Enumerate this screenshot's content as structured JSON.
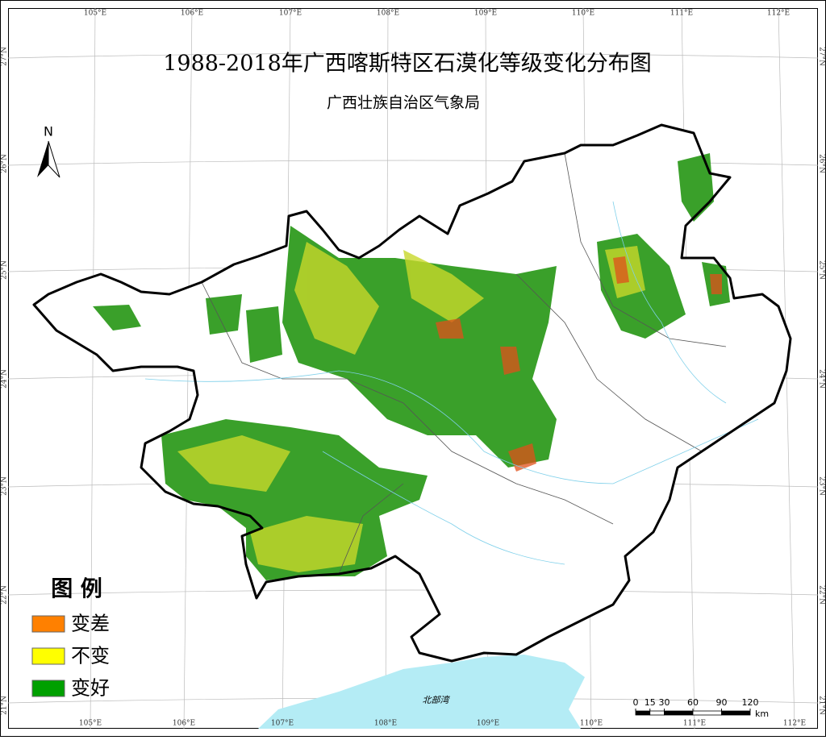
{
  "map": {
    "title": "1988-2018年广西喀斯特区石漠化等级变化分布图",
    "subtitle": "广西壮族自治区气象局",
    "north": "N",
    "longitude_labels": [
      "105°E",
      "106°E",
      "107°E",
      "108°E",
      "109°E",
      "110°E",
      "111°E",
      "112°E"
    ],
    "latitude_labels": [
      "27°N",
      "26°N",
      "25°N",
      "24°N",
      "23°N",
      "22°N",
      "21°N"
    ],
    "sea_label": "北部湾",
    "legend": {
      "title": "图 例",
      "items": [
        {
          "label": "变差",
          "color": "#ff8000"
        },
        {
          "label": "不变",
          "color": "#ffff00"
        },
        {
          "label": "变好",
          "color": "#00a000"
        }
      ]
    },
    "scale_bar": {
      "ticks": [
        0,
        15,
        30,
        60,
        90,
        120
      ],
      "unit": "km"
    }
  }
}
